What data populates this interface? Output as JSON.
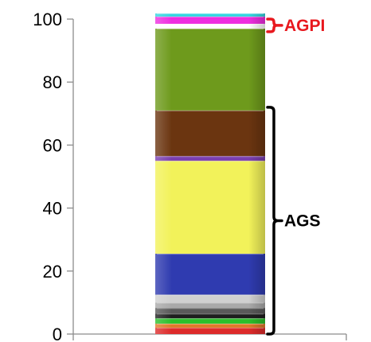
{
  "chart_data": {
    "type": "bar",
    "stacked": true,
    "title": "",
    "xlabel": "",
    "ylabel": "",
    "ylim": [
      0,
      100
    ],
    "yticks": [
      0,
      20,
      40,
      60,
      80,
      100
    ],
    "grid": false,
    "legend": "none",
    "segments": [
      {
        "value": 2.0,
        "color": "#dd2a2a"
      },
      {
        "value": 1.3,
        "color": "#e07a2a"
      },
      {
        "value": 1.7,
        "color": "#2bbf2b"
      },
      {
        "value": 1.5,
        "color": "#1e1e1e"
      },
      {
        "value": 1.8,
        "color": "#5a5a5a"
      },
      {
        "value": 1.7,
        "color": "#a9a9a9"
      },
      {
        "value": 2.5,
        "color": "#d0d0d0"
      },
      {
        "value": 13.0,
        "color": "#2f3bb0"
      },
      {
        "value": 29.5,
        "color": "#f2f25a"
      },
      {
        "value": 1.5,
        "color": "#7a3fb0"
      },
      {
        "value": 14.5,
        "color": "#6b3510"
      },
      {
        "value": 26.0,
        "color": "#6e9a1c"
      },
      {
        "value": 1.5,
        "color": "#ffffff"
      },
      {
        "value": 2.3,
        "color": "#ee2ee0"
      },
      {
        "value": 1.0,
        "color": "#30d6e0"
      }
    ],
    "annotations": [
      {
        "label": "AGPI",
        "from": 96.0,
        "to": 100.0,
        "color": "#e8181e"
      },
      {
        "label": "AGS",
        "from": 0.0,
        "to": 72.0,
        "color": "#000000"
      }
    ]
  }
}
